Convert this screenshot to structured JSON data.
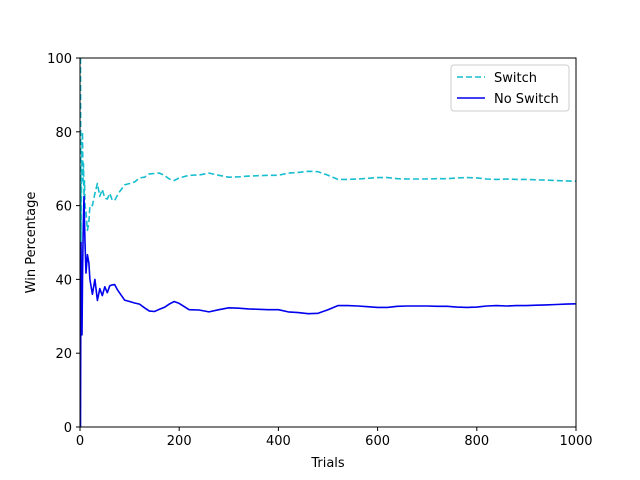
{
  "chart_data": {
    "type": "line",
    "title": "",
    "xlabel": "Trials",
    "ylabel": "Win Percentage",
    "xlim": [
      0,
      1000
    ],
    "ylim": [
      0,
      100
    ],
    "xticks": [
      0,
      200,
      400,
      600,
      800,
      1000
    ],
    "yticks": [
      0,
      20,
      40,
      60,
      80,
      100
    ],
    "grid": false,
    "legend_position": "top-right",
    "series": [
      {
        "name": "Switch",
        "color": "#17becf",
        "style": "dashed",
        "points": [
          [
            1,
            100
          ],
          [
            2,
            50
          ],
          [
            3,
            66.7
          ],
          [
            4,
            75
          ],
          [
            5,
            80
          ],
          [
            6,
            66.7
          ],
          [
            7,
            71.4
          ],
          [
            8,
            62.5
          ],
          [
            9,
            66.7
          ],
          [
            10,
            60
          ],
          [
            12,
            58.3
          ],
          [
            15,
            53.3
          ],
          [
            18,
            55.6
          ],
          [
            20,
            60
          ],
          [
            25,
            60
          ],
          [
            30,
            63.3
          ],
          [
            35,
            66
          ],
          [
            40,
            62.5
          ],
          [
            45,
            64.4
          ],
          [
            50,
            62
          ],
          [
            55,
            61.8
          ],
          [
            60,
            63.3
          ],
          [
            65,
            61.5
          ],
          [
            70,
            61.4
          ],
          [
            75,
            62.7
          ],
          [
            80,
            63.8
          ],
          [
            90,
            65.6
          ],
          [
            100,
            66
          ],
          [
            110,
            66.4
          ],
          [
            120,
            67.5
          ],
          [
            130,
            67.7
          ],
          [
            140,
            68.6
          ],
          [
            150,
            68.7
          ],
          [
            160,
            68.8
          ],
          [
            170,
            68.2
          ],
          [
            180,
            67.2
          ],
          [
            190,
            66.8
          ],
          [
            200,
            67.5
          ],
          [
            220,
            68.2
          ],
          [
            240,
            68.3
          ],
          [
            260,
            68.8
          ],
          [
            280,
            68.2
          ],
          [
            300,
            67.7
          ],
          [
            320,
            67.8
          ],
          [
            340,
            68
          ],
          [
            360,
            68.1
          ],
          [
            380,
            68.2
          ],
          [
            400,
            68.2
          ],
          [
            420,
            68.8
          ],
          [
            440,
            69
          ],
          [
            460,
            69.3
          ],
          [
            480,
            69.2
          ],
          [
            500,
            68.2
          ],
          [
            520,
            67.1
          ],
          [
            540,
            67.1
          ],
          [
            560,
            67.2
          ],
          [
            580,
            67.4
          ],
          [
            600,
            67.6
          ],
          [
            620,
            67.6
          ],
          [
            640,
            67.3
          ],
          [
            660,
            67.2
          ],
          [
            680,
            67.2
          ],
          [
            700,
            67.2
          ],
          [
            720,
            67.3
          ],
          [
            740,
            67.3
          ],
          [
            760,
            67.5
          ],
          [
            780,
            67.6
          ],
          [
            800,
            67.5
          ],
          [
            820,
            67.2
          ],
          [
            840,
            67.1
          ],
          [
            860,
            67.2
          ],
          [
            880,
            67.1
          ],
          [
            900,
            67.1
          ],
          [
            920,
            67
          ],
          [
            940,
            66.9
          ],
          [
            960,
            66.8
          ],
          [
            980,
            66.7
          ],
          [
            1000,
            66.6
          ]
        ]
      },
      {
        "name": "No Switch",
        "color": "#0000ee",
        "style": "solid",
        "points": [
          [
            1,
            0
          ],
          [
            2,
            50
          ],
          [
            3,
            33.3
          ],
          [
            4,
            25
          ],
          [
            5,
            40
          ],
          [
            6,
            50
          ],
          [
            7,
            57.1
          ],
          [
            8,
            62.5
          ],
          [
            9,
            55.6
          ],
          [
            10,
            50
          ],
          [
            12,
            41.7
          ],
          [
            15,
            46.7
          ],
          [
            18,
            44.4
          ],
          [
            20,
            40
          ],
          [
            25,
            36
          ],
          [
            30,
            40
          ],
          [
            35,
            34.3
          ],
          [
            40,
            37.5
          ],
          [
            45,
            35.6
          ],
          [
            50,
            38
          ],
          [
            55,
            36.4
          ],
          [
            60,
            38.3
          ],
          [
            65,
            38.5
          ],
          [
            70,
            38.6
          ],
          [
            75,
            37.3
          ],
          [
            80,
            36.3
          ],
          [
            90,
            34.4
          ],
          [
            100,
            34
          ],
          [
            110,
            33.6
          ],
          [
            120,
            33.3
          ],
          [
            130,
            32.3
          ],
          [
            140,
            31.4
          ],
          [
            150,
            31.3
          ],
          [
            160,
            31.9
          ],
          [
            170,
            32.4
          ],
          [
            180,
            33.3
          ],
          [
            190,
            34
          ],
          [
            200,
            33.5
          ],
          [
            220,
            31.8
          ],
          [
            240,
            31.7
          ],
          [
            260,
            31.2
          ],
          [
            280,
            31.8
          ],
          [
            300,
            32.3
          ],
          [
            320,
            32.2
          ],
          [
            340,
            32
          ],
          [
            360,
            31.9
          ],
          [
            380,
            31.8
          ],
          [
            400,
            31.8
          ],
          [
            420,
            31.2
          ],
          [
            440,
            31
          ],
          [
            460,
            30.7
          ],
          [
            480,
            30.8
          ],
          [
            500,
            31.8
          ],
          [
            520,
            32.9
          ],
          [
            540,
            32.9
          ],
          [
            560,
            32.8
          ],
          [
            580,
            32.6
          ],
          [
            600,
            32.4
          ],
          [
            620,
            32.4
          ],
          [
            640,
            32.7
          ],
          [
            660,
            32.8
          ],
          [
            680,
            32.8
          ],
          [
            700,
            32.8
          ],
          [
            720,
            32.7
          ],
          [
            740,
            32.7
          ],
          [
            760,
            32.5
          ],
          [
            780,
            32.4
          ],
          [
            800,
            32.5
          ],
          [
            820,
            32.8
          ],
          [
            840,
            32.9
          ],
          [
            860,
            32.8
          ],
          [
            880,
            32.9
          ],
          [
            900,
            32.9
          ],
          [
            920,
            33
          ],
          [
            940,
            33.1
          ],
          [
            960,
            33.2
          ],
          [
            980,
            33.3
          ],
          [
            1000,
            33.4
          ]
        ]
      }
    ]
  }
}
